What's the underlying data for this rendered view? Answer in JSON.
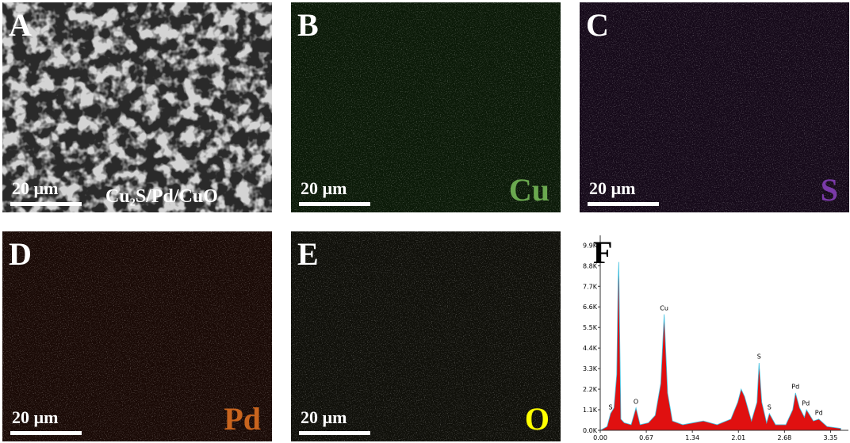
{
  "panels": [
    {
      "letter": "A",
      "scale": "20 µm",
      "caption": "Cu₂S/Pd/CuO"
    },
    {
      "letter": "B",
      "scale": "20 µm",
      "element": "Cu"
    },
    {
      "letter": "C",
      "scale": "20 µm",
      "element": "S"
    },
    {
      "letter": "D",
      "scale": "20 µm",
      "element": "Pd"
    },
    {
      "letter": "E",
      "scale": "20 µm",
      "element": "O"
    }
  ],
  "spectrum": {
    "letter": "F",
    "x": [
      0.0,
      0.1,
      0.15,
      0.2,
      0.24,
      0.26,
      0.27,
      0.28,
      0.3,
      0.35,
      0.45,
      0.52,
      0.58,
      0.7,
      0.8,
      0.88,
      0.93,
      0.98,
      1.05,
      1.2,
      1.5,
      1.7,
      1.9,
      2.0,
      2.05,
      2.1,
      2.2,
      2.28,
      2.31,
      2.35,
      2.42,
      2.46,
      2.55,
      2.7,
      2.8,
      2.84,
      2.9,
      2.97,
      3.0,
      3.1,
      3.18,
      3.3,
      3.5
    ],
    "values": [
      0,
      200,
      900,
      1200,
      3000,
      8000,
      9000,
      6000,
      600,
      400,
      300,
      1200,
      300,
      400,
      800,
      2500,
      6200,
      2000,
      500,
      300,
      500,
      300,
      600,
      1500,
      2200,
      1800,
      500,
      1500,
      3600,
      1500,
      400,
      900,
      300,
      300,
      1100,
      2000,
      1200,
      700,
      1100,
      500,
      600,
      200,
      100
    ],
    "xlim": [
      0,
      3.61
    ],
    "ylim": [
      0,
      10000
    ],
    "xticks": [
      {
        "value": 0,
        "label": "0.00"
      },
      {
        "value": 0.67,
        "label": "0.67"
      },
      {
        "value": 1.34,
        "label": "1.34"
      },
      {
        "value": 2.01,
        "label": "2.01"
      },
      {
        "value": 2.68,
        "label": "2.68"
      },
      {
        "value": 3.35,
        "label": "3.35"
      }
    ],
    "yticks": [
      {
        "value": 0,
        "label": "0.0K"
      },
      {
        "value": 1100,
        "label": "1.1K"
      },
      {
        "value": 2200,
        "label": "2.2K"
      },
      {
        "value": 3300,
        "label": "3.3K"
      },
      {
        "value": 4400,
        "label": "4.4K"
      },
      {
        "value": 5500,
        "label": "5.5K"
      },
      {
        "value": 6600,
        "label": "6.6K"
      },
      {
        "value": 7700,
        "label": "7.7K"
      },
      {
        "value": 8800,
        "label": "8.8K"
      },
      {
        "value": 9900,
        "label": "9.9K"
      }
    ],
    "peaks": [
      {
        "label": "S",
        "x": 0.15,
        "y": 1000
      },
      {
        "label": "O",
        "x": 0.52,
        "y": 1300
      },
      {
        "label": "Cu",
        "x": 0.93,
        "y": 6300
      },
      {
        "label": "S",
        "x": 2.31,
        "y": 3700
      },
      {
        "label": "S",
        "x": 2.46,
        "y": 1000
      },
      {
        "label": "Pd",
        "x": 2.84,
        "y": 2100
      },
      {
        "label": "Pd",
        "x": 2.99,
        "y": 1200
      },
      {
        "label": "Pd",
        "x": 3.18,
        "y": 700
      }
    ]
  }
}
